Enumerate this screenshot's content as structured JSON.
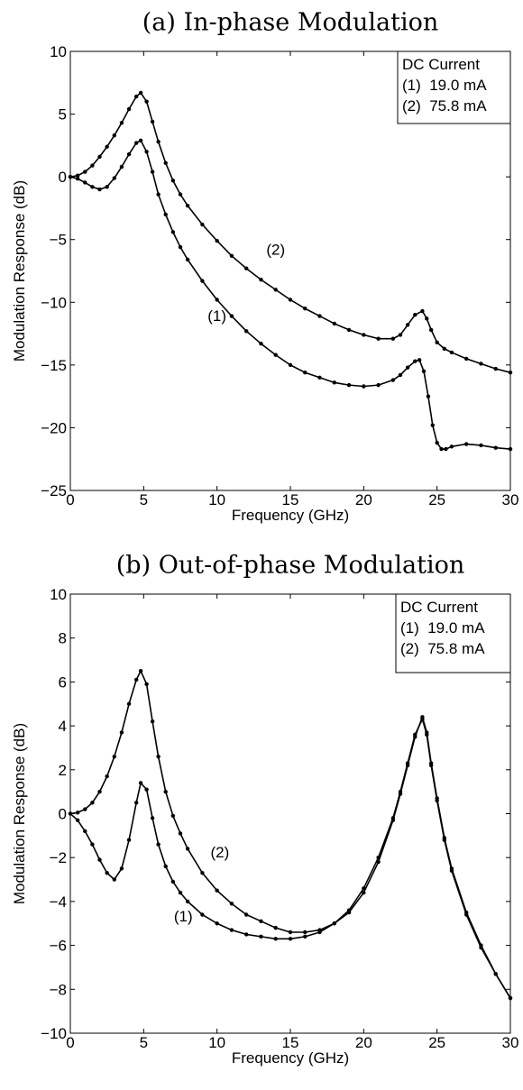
{
  "chart_data": [
    {
      "type": "line",
      "title": "(a) In-phase Modulation",
      "xlabel": "Frequency (GHz)",
      "ylabel": "Modulation Response (dB)",
      "xlim": [
        0,
        30
      ],
      "ylim": [
        -25,
        10
      ],
      "xticks": [
        0,
        5,
        10,
        15,
        20,
        25,
        30
      ],
      "yticks": [
        -25,
        -20,
        -15,
        -10,
        -5,
        0,
        5,
        10
      ],
      "grid": false,
      "legend": {
        "placement": "top-right",
        "title": "DC Current",
        "entries": [
          "(1)  19.0 mA",
          "(2)  75.8 mA"
        ]
      },
      "annotations": [
        {
          "text": "(1)",
          "x": 10.0,
          "y": -11.5
        },
        {
          "text": "(2)",
          "x": 14.0,
          "y": -6.2
        }
      ],
      "series": [
        {
          "name": "(1)",
          "x": [
            0,
            0.5,
            1,
            1.5,
            2,
            2.5,
            3,
            3.5,
            4,
            4.5,
            4.8,
            5.2,
            5.6,
            6,
            6.5,
            7,
            7.5,
            8,
            9,
            10,
            11,
            12,
            13,
            14,
            15,
            16,
            17,
            18,
            19,
            20,
            21,
            22,
            22.5,
            23,
            23.5,
            23.8,
            24.1,
            24.4,
            24.7,
            25,
            25.3,
            25.6,
            26,
            27,
            28,
            29,
            30
          ],
          "y": [
            0,
            -0.15,
            -0.45,
            -0.8,
            -1.0,
            -0.8,
            -0.1,
            0.8,
            1.8,
            2.7,
            2.9,
            2.0,
            0.4,
            -1.4,
            -3.0,
            -4.4,
            -5.6,
            -6.6,
            -8.3,
            -9.8,
            -11.1,
            -12.3,
            -13.3,
            -14.2,
            -15.0,
            -15.6,
            -16.0,
            -16.4,
            -16.6,
            -16.7,
            -16.6,
            -16.2,
            -15.8,
            -15.2,
            -14.7,
            -14.6,
            -15.5,
            -17.5,
            -19.8,
            -21.2,
            -21.7,
            -21.7,
            -21.5,
            -21.3,
            -21.4,
            -21.6,
            -21.7
          ]
        },
        {
          "name": "(2)",
          "x": [
            0,
            0.5,
            1,
            1.5,
            2,
            2.5,
            3,
            3.5,
            4,
            4.5,
            4.8,
            5.2,
            5.6,
            6,
            6.5,
            7,
            7.5,
            8,
            9,
            10,
            11,
            12,
            13,
            14,
            15,
            16,
            17,
            18,
            19,
            20,
            21,
            22,
            22.5,
            23,
            23.5,
            24,
            24.3,
            24.6,
            25,
            25.5,
            26,
            27,
            28,
            29,
            30
          ],
          "y": [
            0,
            0.1,
            0.4,
            0.9,
            1.6,
            2.4,
            3.3,
            4.3,
            5.4,
            6.4,
            6.7,
            6.0,
            4.4,
            2.8,
            1.1,
            -0.3,
            -1.4,
            -2.3,
            -3.8,
            -5.1,
            -6.3,
            -7.3,
            -8.2,
            -9.0,
            -9.8,
            -10.5,
            -11.1,
            -11.7,
            -12.2,
            -12.6,
            -12.9,
            -12.9,
            -12.6,
            -11.8,
            -11.0,
            -10.7,
            -11.3,
            -12.2,
            -13.2,
            -13.7,
            -14.0,
            -14.5,
            -14.9,
            -15.3,
            -15.6
          ]
        }
      ]
    },
    {
      "type": "line",
      "title": "(b) Out-of-phase Modulation",
      "xlabel": "Frequency (GHz)",
      "ylabel": "Modulation Response (dB)",
      "xlim": [
        0,
        30
      ],
      "ylim": [
        -10,
        10
      ],
      "xticks": [
        0,
        5,
        10,
        15,
        20,
        25,
        30
      ],
      "yticks": [
        -10,
        -8,
        -6,
        -4,
        -2,
        0,
        2,
        4,
        6,
        8,
        10
      ],
      "grid": false,
      "legend": {
        "placement": "top-right",
        "title": "DC Current",
        "entries": [
          "(1)  19.0 mA",
          "(2)  75.8 mA"
        ]
      },
      "annotations": [
        {
          "text": "(1)",
          "x": 7.7,
          "y": -4.9
        },
        {
          "text": "(2)",
          "x": 10.2,
          "y": -2.0
        }
      ],
      "series": [
        {
          "name": "(1)",
          "x": [
            0,
            0.5,
            1,
            1.5,
            2,
            2.5,
            3,
            3.5,
            4,
            4.5,
            4.8,
            5.2,
            5.6,
            6,
            6.5,
            7,
            7.5,
            8,
            9,
            10,
            11,
            12,
            13,
            14,
            15,
            16,
            17,
            18,
            19,
            20,
            21,
            22,
            22.5,
            23,
            23.5,
            24,
            24.3,
            24.6,
            25,
            25.5,
            26,
            27,
            28,
            29,
            30
          ],
          "y": [
            0,
            -0.3,
            -0.8,
            -1.4,
            -2.1,
            -2.7,
            -3.0,
            -2.5,
            -1.2,
            0.5,
            1.4,
            1.1,
            -0.2,
            -1.4,
            -2.4,
            -3.1,
            -3.6,
            -4.0,
            -4.6,
            -5.0,
            -5.3,
            -5.5,
            -5.6,
            -5.7,
            -5.7,
            -5.6,
            -5.4,
            -5.0,
            -4.4,
            -3.4,
            -2.0,
            -0.2,
            1.0,
            2.3,
            3.6,
            4.3,
            3.6,
            2.2,
            0.6,
            -1.2,
            -2.6,
            -4.6,
            -6.1,
            -7.3,
            -8.4
          ]
        },
        {
          "name": "(2)",
          "x": [
            0,
            0.5,
            1,
            1.5,
            2,
            2.5,
            3,
            3.5,
            4,
            4.5,
            4.8,
            5.2,
            5.6,
            6,
            6.5,
            7,
            7.5,
            8,
            9,
            10,
            11,
            12,
            13,
            14,
            15,
            16,
            17,
            18,
            19,
            20,
            21,
            22,
            22.5,
            23,
            23.5,
            24,
            24.3,
            24.6,
            25,
            25.5,
            26,
            27,
            28,
            29,
            30
          ],
          "y": [
            0,
            0.05,
            0.2,
            0.5,
            1.0,
            1.7,
            2.6,
            3.7,
            5.0,
            6.1,
            6.5,
            5.9,
            4.2,
            2.6,
            1.0,
            -0.1,
            -0.9,
            -1.6,
            -2.7,
            -3.5,
            -4.1,
            -4.6,
            -4.9,
            -5.2,
            -5.4,
            -5.4,
            -5.3,
            -5.0,
            -4.5,
            -3.6,
            -2.2,
            -0.3,
            0.9,
            2.2,
            3.5,
            4.4,
            3.7,
            2.3,
            0.7,
            -1.1,
            -2.5,
            -4.5,
            -6.0,
            -7.3,
            -8.4
          ]
        }
      ]
    }
  ]
}
